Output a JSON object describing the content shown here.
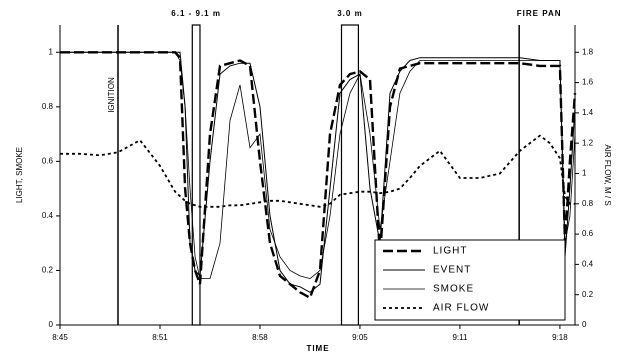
{
  "chart_data": {
    "type": "line",
    "x_label": "TIME",
    "y_label": "LIGHT, SMOKE",
    "y2_label": "AIR FLOW, M / S",
    "x": [
      45,
      46.3,
      47.6,
      48.77,
      50.2,
      51.5,
      52.48,
      52.8,
      53.13,
      53.45,
      53.78,
      54.1,
      54.75,
      55.4,
      56.05,
      56.7,
      57.35,
      58,
      58.65,
      59.3,
      59.95,
      60.6,
      61.25,
      61.9,
      62.55,
      63.2,
      63.85,
      64.5,
      65.15,
      65.8,
      66.45,
      67.1,
      67.75,
      68.4,
      69.7,
      71,
      72.3,
      73.6,
      74.9,
      76.2,
      76.85,
      77.5,
      77.83,
      78.15,
      78.48
    ],
    "xlim": [
      45,
      78.48
    ],
    "xticks": [
      {
        "value": 45,
        "label": "8:45"
      },
      {
        "value": 51.5,
        "label": "8:51"
      },
      {
        "value": 58,
        "label": "8:58"
      },
      {
        "value": 64.5,
        "label": "9:05"
      },
      {
        "value": 71,
        "label": "9:11"
      },
      {
        "value": 77.5,
        "label": "9:18"
      }
    ],
    "ylim": [
      0,
      1.1
    ],
    "yticks": [
      0,
      0.2,
      0.4,
      0.6,
      0.8,
      1
    ],
    "y2lim": [
      0,
      1.98
    ],
    "y2ticks": [
      0,
      0.2,
      0.4,
      0.6,
      0.8,
      1,
      1.2,
      1.4,
      1.6,
      1.8
    ],
    "legend": "lower right",
    "series": [
      {
        "name": "LIGHT",
        "color": "#000000",
        "dash": "long",
        "width": 2.4,
        "values": [
          1,
          1,
          1,
          1,
          1,
          1,
          1,
          0.98,
          0.5,
          0.3,
          0.2,
          0.15,
          0.7,
          0.95,
          0.96,
          0.97,
          0.95,
          0.6,
          0.3,
          0.18,
          0.15,
          0.12,
          0.1,
          0.2,
          0.7,
          0.88,
          0.92,
          0.93,
          0.9,
          0.25,
          0.8,
          0.94,
          0.95,
          0.96,
          0.96,
          0.96,
          0.96,
          0.96,
          0.96,
          0.95,
          0.95,
          0.95,
          0.3,
          0.6,
          0.85
        ]
      },
      {
        "name": "EVENT",
        "color": "#000000",
        "dash": "solid",
        "width": 1,
        "values": [
          1,
          1,
          1,
          1,
          1,
          1,
          1,
          1,
          0.8,
          0.3,
          0.2,
          0.18,
          0.6,
          0.92,
          0.95,
          0.96,
          0.96,
          0.8,
          0.4,
          0.2,
          0.15,
          0.14,
          0.12,
          0.15,
          0.5,
          0.85,
          0.9,
          0.92,
          0.5,
          0.3,
          0.85,
          0.93,
          0.97,
          0.98,
          0.98,
          0.98,
          0.98,
          0.98,
          0.98,
          0.97,
          0.97,
          0.97,
          0.25,
          0.5,
          0.8
        ]
      },
      {
        "name": "SMOKE",
        "color": "#000000",
        "dash": "solid",
        "width": 0.8,
        "values": [
          1,
          1,
          1,
          1,
          1,
          1,
          1,
          0.97,
          0.8,
          0.5,
          0.25,
          0.17,
          0.17,
          0.3,
          0.75,
          0.88,
          0.65,
          0.7,
          0.35,
          0.25,
          0.2,
          0.18,
          0.17,
          0.2,
          0.4,
          0.7,
          0.85,
          0.92,
          0.7,
          0.35,
          0.6,
          0.85,
          0.93,
          0.97,
          0.97,
          0.97,
          0.97,
          0.97,
          0.97,
          0.97,
          0.97,
          0.97,
          0.3,
          0.4,
          0.7
        ]
      },
      {
        "name": "AIR FLOW",
        "color": "#000000",
        "dash": "dotted",
        "width": 1.8,
        "axis": "y2",
        "values": [
          1.13,
          1.13,
          1.12,
          1.14,
          1.22,
          1.05,
          0.88,
          0.85,
          0.82,
          0.8,
          0.79,
          0.78,
          0.78,
          0.78,
          0.79,
          0.79,
          0.8,
          0.81,
          0.82,
          0.82,
          0.81,
          0.8,
          0.79,
          0.78,
          0.8,
          0.86,
          0.87,
          0.88,
          0.88,
          0.87,
          0.88,
          0.9,
          0.97,
          1.05,
          1.15,
          0.97,
          0.97,
          1.0,
          1.15,
          1.25,
          1.2,
          1.1,
          0.85,
          0.8,
          0.8
        ]
      }
    ],
    "markers": [
      {
        "label": "IGNITION",
        "x": 48.77
      },
      {
        "label": "FIRE PAN",
        "x": 74.85
      }
    ],
    "bands": [
      {
        "label": "6.1 - 9.1 m",
        "x": [
          53.6,
          54.1
        ]
      },
      {
        "label": "3.0 m",
        "x": [
          63.3,
          64.4
        ]
      }
    ]
  }
}
